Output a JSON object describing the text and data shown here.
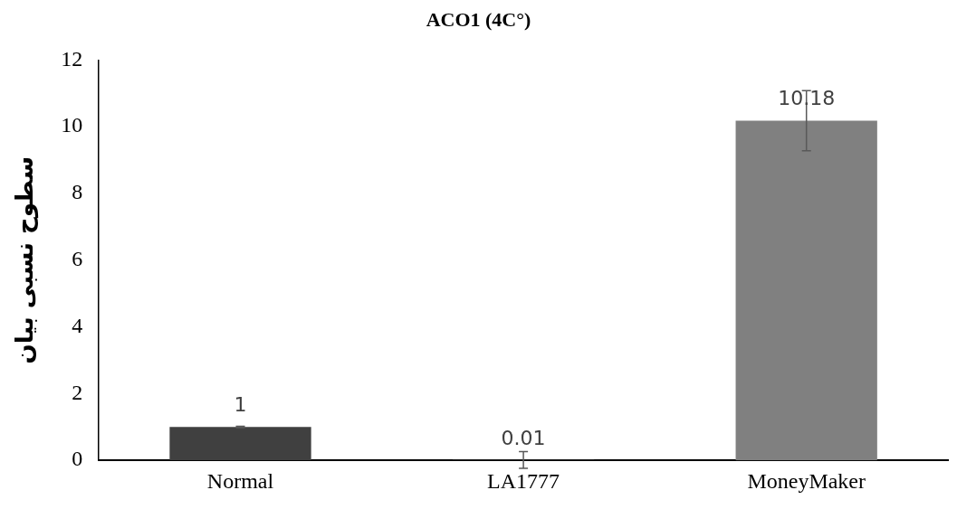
{
  "chart_data": {
    "type": "bar",
    "title": "ACO1 (4C°)",
    "ylabel": "سطوح نسبی بیان",
    "categories": [
      "Normal",
      "LA1777",
      "MoneyMaker"
    ],
    "values": [
      1,
      0.01,
      10.18
    ],
    "colors": [
      "#404040",
      "#595959",
      "#808080"
    ],
    "errors": [
      0.02,
      0.25,
      0.9
    ],
    "ylim": [
      0,
      12
    ],
    "yticks": [
      0,
      2,
      4,
      6,
      8,
      10,
      12
    ],
    "grid": false,
    "data_labels": true
  }
}
